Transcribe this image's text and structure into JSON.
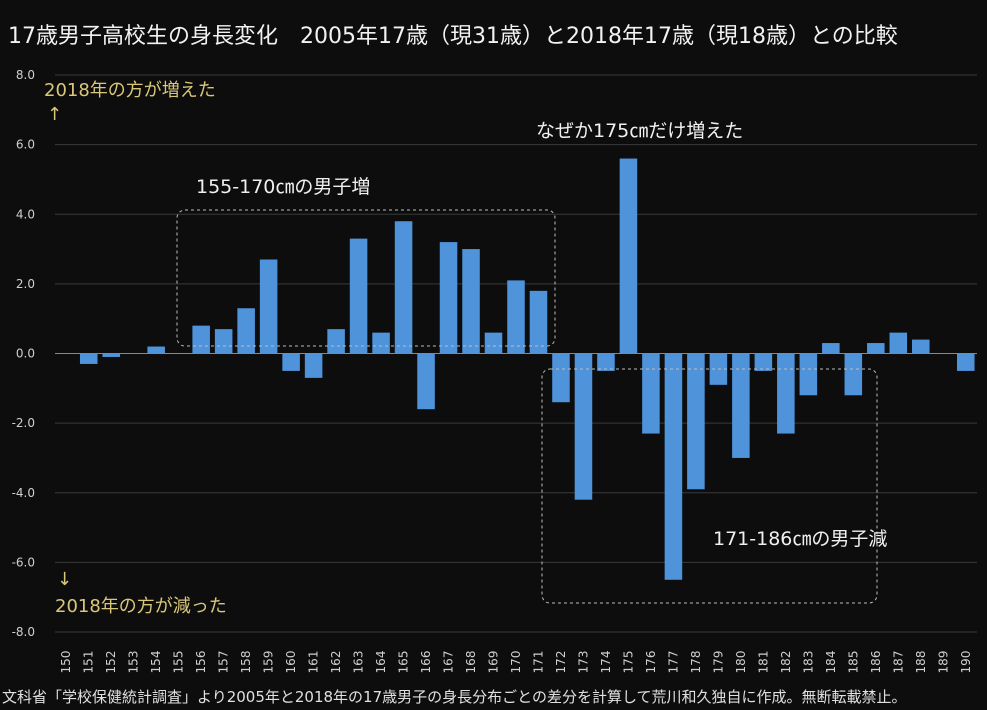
{
  "chart_data": {
    "type": "bar",
    "title": "17歳男子高校生の身長変化　2005年17歳（現31歳）と2018年17歳（現18歳）との比較",
    "xlabel": "",
    "ylabel": "",
    "ylim": [
      -8.0,
      8.0
    ],
    "yticks": [
      "8.0",
      "6.0",
      "4.0",
      "2.0",
      "0.0",
      "-2.0",
      "-4.0",
      "-6.0",
      "-8.0"
    ],
    "grid": true,
    "categories": [
      "150",
      "151",
      "152",
      "153",
      "154",
      "155",
      "156",
      "157",
      "158",
      "159",
      "160",
      "161",
      "162",
      "163",
      "164",
      "165",
      "166",
      "167",
      "168",
      "169",
      "170",
      "171",
      "172",
      "173",
      "174",
      "175",
      "176",
      "177",
      "178",
      "179",
      "180",
      "181",
      "182",
      "183",
      "184",
      "185",
      "186",
      "187",
      "188",
      "189",
      "190"
    ],
    "values": [
      0,
      -0.3,
      -0.1,
      0,
      0.2,
      0,
      0.8,
      0.7,
      1.3,
      2.7,
      -0.5,
      -0.7,
      0.7,
      3.3,
      0.6,
      3.8,
      -1.6,
      3.2,
      3.0,
      0.6,
      2.1,
      1.8,
      -1.4,
      -4.2,
      -0.5,
      5.6,
      -2.3,
      -6.5,
      -3.9,
      -0.9,
      -3.0,
      -0.5,
      -2.3,
      -1.2,
      0.3,
      -1.2,
      0.3,
      0.6,
      0.4,
      0,
      -0.5
    ],
    "bar_color": "#4f93db",
    "annotations": {
      "up_label": "2018年の方が増えた",
      "up_arrow": "↑",
      "down_arrow": "↓",
      "down_label": "2018年の方が減った",
      "increase_group": "155-170㎝の男子増",
      "peak_note": "なぜか175㎝だけ増えた",
      "decrease_group": "171-186㎝の男子減"
    }
  },
  "footer_note": "文科省「学校保健統計調査」より2005年と2018年の17歳男子の身長分布ごとの差分を計算して荒川和久独自に作成。無断転載禁止。"
}
